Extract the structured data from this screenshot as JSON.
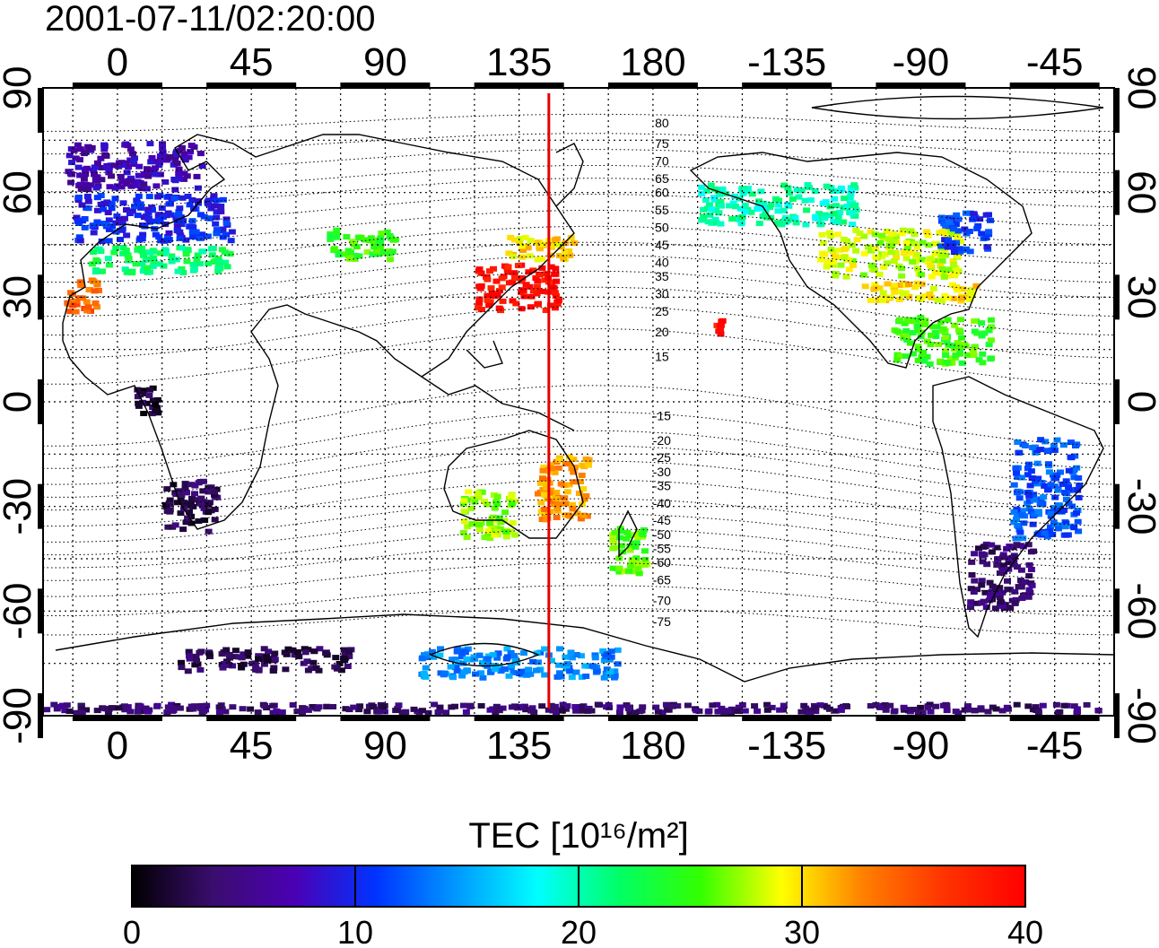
{
  "timestamp": "2001-07-11/02:20:00",
  "lon_ticks": [
    {
      "label": "0",
      "lon": 0
    },
    {
      "label": "45",
      "lon": 45
    },
    {
      "label": "90",
      "lon": 90
    },
    {
      "label": "135",
      "lon": 135
    },
    {
      "label": "180",
      "lon": 180
    },
    {
      "label": "-135",
      "lon": 225
    },
    {
      "label": "-90",
      "lon": 270
    },
    {
      "label": "-45",
      "lon": 315
    }
  ],
  "lat_ticks": [
    {
      "label": "90",
      "lat": 90
    },
    {
      "label": "60",
      "lat": 60
    },
    {
      "label": "30",
      "lat": 30
    },
    {
      "label": "0",
      "lat": 0
    },
    {
      "label": "-30",
      "lat": -30
    },
    {
      "label": "-60",
      "lat": -60
    },
    {
      "label": "-90",
      "lat": -90
    }
  ],
  "map_extent": {
    "lon_min": -25,
    "lon_max": 335,
    "lat_min": -90,
    "lat_max": 90
  },
  "meridian_marker": {
    "lon": 145,
    "color": "#e60000"
  },
  "magnetic_lat_labels": [
    {
      "label": "80",
      "lat": 80
    },
    {
      "label": "75",
      "lat": 74
    },
    {
      "label": "70",
      "lat": 69
    },
    {
      "label": "65",
      "lat": 64
    },
    {
      "label": "60",
      "lat": 60
    },
    {
      "label": "55",
      "lat": 55
    },
    {
      "label": "50",
      "lat": 50
    },
    {
      "label": "45",
      "lat": 45
    },
    {
      "label": "40",
      "lat": 40
    },
    {
      "label": "35",
      "lat": 36
    },
    {
      "label": "30",
      "lat": 31
    },
    {
      "label": "25",
      "lat": 26
    },
    {
      "label": "20",
      "lat": 20
    },
    {
      "label": "15",
      "lat": 13
    },
    {
      "label": "-15",
      "lat": -4
    },
    {
      "label": "-20",
      "lat": -11
    },
    {
      "label": "-25",
      "lat": -16
    },
    {
      "label": "-30",
      "lat": -20
    },
    {
      "label": "-35",
      "lat": -24
    },
    {
      "label": "-40",
      "lat": -29
    },
    {
      "label": "-45",
      "lat": -34
    },
    {
      "label": "-50",
      "lat": -38
    },
    {
      "label": "-55",
      "lat": -42
    },
    {
      "label": "-60",
      "lat": -46
    },
    {
      "label": "-65",
      "lat": -51
    },
    {
      "label": "-70",
      "lat": -57
    },
    {
      "label": "-75",
      "lat": -63
    }
  ],
  "colorbar": {
    "title": "TEC [10¹⁶/m²]",
    "min": 0,
    "max": 40,
    "tick_labels": [
      {
        "label": "0",
        "value": 0
      },
      {
        "label": "10",
        "value": 10
      },
      {
        "label": "20",
        "value": 20
      },
      {
        "label": "30",
        "value": 30
      },
      {
        "label": "40",
        "value": 40
      }
    ],
    "color_stops": [
      "#000000",
      "#3a0d6e",
      "#4b00b4",
      "#0033ff",
      "#0099ff",
      "#00ffff",
      "#00ff66",
      "#33ff00",
      "#ffff00",
      "#ff8000",
      "#ff3300",
      "#ff0000"
    ]
  },
  "tec_regions": [
    {
      "name": "europe-north",
      "lon": [
        -18,
        30
      ],
      "lat": [
        60,
        75
      ],
      "tec": 7
    },
    {
      "name": "europe-central",
      "lon": [
        -15,
        40
      ],
      "lat": [
        45,
        60
      ],
      "tec": 10
    },
    {
      "name": "europe-south",
      "lon": [
        -10,
        40
      ],
      "lat": [
        36,
        45
      ],
      "tec": 22
    },
    {
      "name": "iberia",
      "lon": [
        -18,
        -5
      ],
      "lat": [
        25,
        36
      ],
      "tec": 34
    },
    {
      "name": "russia-south",
      "lon": [
        70,
        95
      ],
      "lat": [
        40,
        50
      ],
      "tec": 25
    },
    {
      "name": "japan-china",
      "lon": [
        120,
        150
      ],
      "lat": [
        25,
        40
      ],
      "tec": 39
    },
    {
      "name": "japan-north",
      "lon": [
        130,
        155
      ],
      "lat": [
        40,
        48
      ],
      "tec": 30
    },
    {
      "name": "hawaii",
      "lon": [
        200,
        205
      ],
      "lat": [
        18,
        25
      ],
      "tec": 39
    },
    {
      "name": "north-america-canada",
      "lon": [
        195,
        250
      ],
      "lat": [
        50,
        63
      ],
      "tec": 20
    },
    {
      "name": "north-america-usa",
      "lon": [
        235,
        285
      ],
      "lat": [
        35,
        50
      ],
      "tec": 28
    },
    {
      "name": "north-america-east",
      "lon": [
        275,
        295
      ],
      "lat": [
        42,
        55
      ],
      "tec": 11
    },
    {
      "name": "north-america-south",
      "lon": [
        250,
        290
      ],
      "lat": [
        28,
        35
      ],
      "tec": 30
    },
    {
      "name": "central-america",
      "lon": [
        260,
        295
      ],
      "lat": [
        10,
        25
      ],
      "tec": 25
    },
    {
      "name": "australia-east",
      "lon": [
        140,
        160
      ],
      "lat": [
        -35,
        -15
      ],
      "tec": 32
    },
    {
      "name": "australia-west",
      "lon": [
        115,
        135
      ],
      "lat": [
        -40,
        -25
      ],
      "tec": 27
    },
    {
      "name": "new-zealand",
      "lon": [
        165,
        180
      ],
      "lat": [
        -50,
        -35
      ],
      "tec": 26
    },
    {
      "name": "africa-south",
      "lon": [
        15,
        35
      ],
      "lat": [
        -38,
        -22
      ],
      "tec": 3
    },
    {
      "name": "africa-central",
      "lon": [
        5,
        15
      ],
      "lat": [
        -5,
        5
      ],
      "tec": 2
    },
    {
      "name": "south-america-east",
      "lon": [
        300,
        325
      ],
      "lat": [
        -40,
        -10
      ],
      "tec": 12
    },
    {
      "name": "south-america-south",
      "lon": [
        285,
        310
      ],
      "lat": [
        -60,
        -40
      ],
      "tec": 4
    },
    {
      "name": "antarctica-rim",
      "lon": [
        20,
        80
      ],
      "lat": [
        -78,
        -70
      ],
      "tec": 3
    },
    {
      "name": "antarctica-pacific",
      "lon": [
        100,
        170
      ],
      "lat": [
        -80,
        -70
      ],
      "tec": 14
    },
    {
      "name": "south-pole-band",
      "lon": [
        -25,
        335
      ],
      "lat": [
        -90,
        -86
      ],
      "tec": 4
    }
  ]
}
